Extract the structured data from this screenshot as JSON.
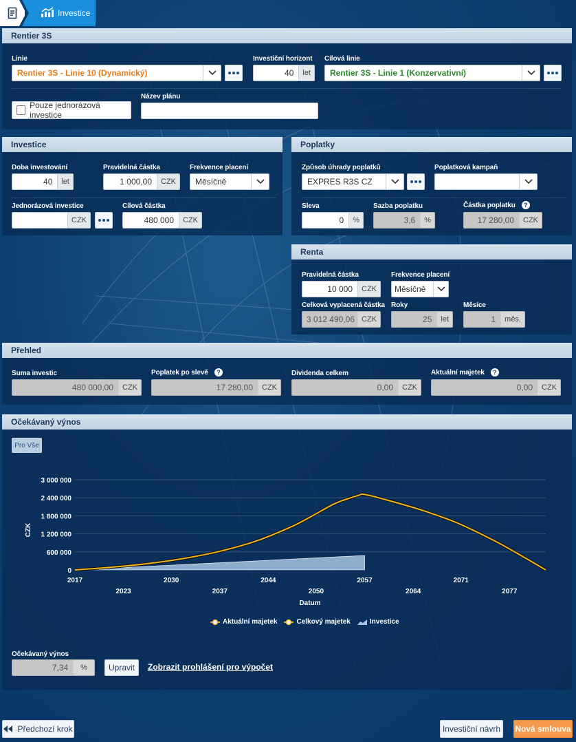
{
  "tabs": {
    "home_icon": "document-icon",
    "active_icon": "chart-up-icon",
    "active_label": "Investice"
  },
  "main_panel": {
    "title": "Rentier 3S",
    "linie_label": "Linie",
    "linie_value": "Rentier 3S - Linie 10 (Dynamický)",
    "horizont_label": "Investiční horizont",
    "horizont_value": "40",
    "horizont_unit": "let",
    "cilova_linie_label": "Cílová linie",
    "cilova_linie_value": "Rentier 3S - Linie 1 (Konzervativní)",
    "jednorazova_checkbox_label": "Pouze jednorázová investice",
    "nazev_planu_label": "Název plánu",
    "nazev_planu_value": ""
  },
  "investice": {
    "title": "Investice",
    "doba_label": "Doba investování",
    "doba_value": "40",
    "doba_unit": "let",
    "pravidelna_label": "Pravidelná částka",
    "pravidelna_value": "1 000,00",
    "pravidelna_unit": "CZK",
    "frekvence_label": "Frekvence placení",
    "frekvence_value": "Měsíčně",
    "jednorazova_label": "Jednorázová investice",
    "jednorazova_value": "",
    "jednorazova_unit": "CZK",
    "cilova_label": "Cílová částka",
    "cilova_value": "480 000",
    "cilova_unit": "CZK"
  },
  "poplatky": {
    "title": "Poplatky",
    "zpusob_label": "Způsob úhrady poplatků",
    "zpusob_value": "EXPRES R3S CZ",
    "kampan_label": "Poplatková kampaň",
    "kampan_value": "",
    "sleva_label": "Sleva",
    "sleva_value": "0",
    "sleva_unit": "%",
    "sazba_label": "Sazba poplatku",
    "sazba_value": "3,6",
    "sazba_unit": "%",
    "castka_label": "Částka poplatku",
    "castka_value": "17 280,00",
    "castka_unit": "CZK"
  },
  "renta": {
    "title": "Renta",
    "pravidelna_label": "Pravidelná částka",
    "pravidelna_value": "10 000",
    "pravidelna_unit": "CZK",
    "frekvence_label": "Frekvence placení",
    "frekvence_value": "Měsíčně",
    "celkova_label": "Celková vyplacená částka",
    "celkova_value": "3 012 490,06",
    "celkova_unit": "CZK",
    "roky_label": "Roky",
    "roky_value": "25",
    "roky_unit": "let",
    "mesice_label": "Měsíce",
    "mesice_value": "1",
    "mesice_unit": "měs."
  },
  "prehled": {
    "title": "Přehled",
    "suma_label": "Suma investic",
    "suma_value": "480 000,00",
    "suma_unit": "CZK",
    "poplatek_label": "Poplatek po slevě",
    "poplatek_value": "17 280,00",
    "poplatek_unit": "CZK",
    "dividenda_label": "Dividenda celkem",
    "dividenda_value": "0,00",
    "dividenda_unit": "CZK",
    "majetek_label": "Aktuální majetek",
    "majetek_value": "0,00",
    "majetek_unit": "CZK"
  },
  "vynos": {
    "title": "Očekávaný výnos",
    "pro_vse_label": "Pro Vše",
    "vynos_label": "Očekávaný výnos",
    "vynos_value": "7,34",
    "vynos_unit": "%",
    "upravit_label": "Upravit",
    "link_label": "Zobrazit prohlášení pro výpočet"
  },
  "footer": {
    "prev_label": "Předchozí krok",
    "navrh_label": "Investiční návrh",
    "nova_label": "Nová smlouva"
  },
  "help_glyph": "?",
  "chart_data": {
    "type": "area",
    "xlabel": "Datum",
    "ylabel": "CZK",
    "xlim": [
      2017,
      2082
    ],
    "ylim": [
      0,
      3000000
    ],
    "x_ticks_row1": [
      "2017",
      "2030",
      "2044",
      "2057",
      "2071"
    ],
    "x_ticks_row1_values": [
      2017,
      2030.3,
      2043.7,
      2057,
      2070.3
    ],
    "x_ticks_row2": [
      "2023",
      "2037",
      "2050",
      "2064",
      "2077"
    ],
    "x_ticks_row2_values": [
      2023.7,
      2037,
      2050.3,
      2063.7,
      2077
    ],
    "y_ticks": [
      "0",
      "600 000",
      "1 200 000",
      "1 800 000",
      "2 400 000",
      "3 000 000"
    ],
    "y_tick_values": [
      0,
      600000,
      1200000,
      1800000,
      2400000,
      3000000
    ],
    "legend_position": "bottom",
    "series": [
      {
        "name": "Aktuální majetek",
        "color": "#f0a040",
        "x": [],
        "values": []
      },
      {
        "name": "Celkový majetek",
        "color": "#f2b51c",
        "x": [
          2017,
          2022,
          2027,
          2032,
          2037,
          2042,
          2047,
          2050,
          2053,
          2056,
          2057,
          2060,
          2065,
          2070,
          2075,
          2078,
          2082
        ],
        "values": [
          0,
          90000,
          210000,
          380000,
          620000,
          960000,
          1450000,
          1830000,
          2220000,
          2470000,
          2510000,
          2330000,
          1980000,
          1540000,
          960000,
          560000,
          0
        ]
      },
      {
        "name": "Investice",
        "color": "#8fb8dc",
        "x": [
          2017,
          2057
        ],
        "values": [
          0,
          480000
        ]
      }
    ]
  }
}
